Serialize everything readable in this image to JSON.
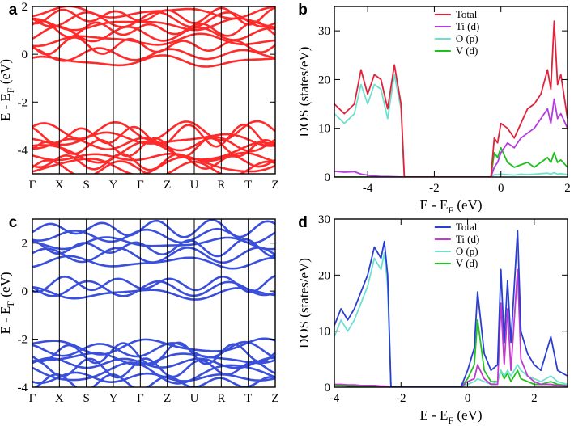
{
  "chart_data": [
    {
      "panel": "a",
      "type": "line",
      "subtype": "band-structure",
      "color": "#ff2a2a",
      "k_labels": [
        "Γ",
        "X",
        "S",
        "Y",
        "Γ",
        "Z",
        "U",
        "R",
        "T",
        "Z"
      ],
      "ylabel": "E - E",
      "ylabel_sub": "F",
      "ylabel_unit": "(eV)",
      "ylim": [
        -5,
        2
      ],
      "yticks": [
        -4,
        -2,
        0,
        2
      ],
      "conduction_bands": [
        -0.3,
        0.0,
        0.35,
        0.6,
        0.85,
        1.05,
        1.25,
        1.45,
        1.6,
        1.75
      ],
      "valence_bands": [
        -3.2,
        -3.4,
        -3.55,
        -3.75,
        -3.9,
        -4.1,
        -4.3,
        -4.5,
        -4.65,
        -4.8
      ]
    },
    {
      "panel": "b",
      "type": "line",
      "subtype": "density-of-states",
      "xlabel": "E - E",
      "xlabel_sub": "F",
      "xlabel_unit": "(eV)",
      "ylabel": "DOS (states/eV)",
      "xlim": [
        -5,
        2
      ],
      "ylim": [
        0,
        35
      ],
      "xticks": [
        -4,
        -2,
        0,
        2
      ],
      "yticks": [
        0,
        10,
        20,
        30
      ],
      "legend_position": "top-right",
      "x": [
        -5.0,
        -4.7,
        -4.4,
        -4.2,
        -4.0,
        -3.8,
        -3.6,
        -3.4,
        -3.2,
        -3.0,
        -2.9,
        -2.5,
        -2.0,
        -1.0,
        -0.3,
        -0.2,
        -0.1,
        0.0,
        0.2,
        0.4,
        0.6,
        0.8,
        1.0,
        1.2,
        1.4,
        1.5,
        1.6,
        1.7,
        1.8,
        2.0
      ],
      "series": [
        {
          "name": "Total",
          "color": "#e0233c",
          "values": [
            15,
            13,
            15,
            22,
            17,
            21,
            20,
            14,
            23,
            15,
            0,
            0,
            0,
            0,
            0,
            8,
            7,
            11,
            10,
            8,
            11,
            14,
            15,
            17,
            22,
            18,
            32,
            19,
            21,
            12
          ]
        },
        {
          "name": "Ti (d)",
          "color": "#b33be0",
          "values": [
            1.2,
            1.0,
            1.1,
            0.6,
            0.4,
            0.2,
            0.1,
            0.1,
            0.05,
            0.02,
            0,
            0,
            0,
            0,
            0,
            2,
            3,
            5,
            7,
            6,
            8,
            9,
            10,
            12,
            14,
            11,
            16,
            12,
            13,
            10
          ]
        },
        {
          "name": "O (p)",
          "color": "#6fe0cf",
          "values": [
            13,
            11,
            13,
            19,
            15,
            19,
            18,
            12,
            21,
            14,
            0,
            0,
            0,
            0,
            0,
            0.5,
            0.5,
            0.6,
            0.5,
            0.4,
            0.6,
            0.5,
            0.6,
            0.7,
            0.8,
            0.6,
            0.9,
            0.6,
            0.7,
            0.5
          ]
        },
        {
          "name": "V (d)",
          "color": "#1fbf1f",
          "values": [
            0,
            0,
            0,
            0,
            0,
            0,
            0,
            0,
            0,
            0,
            0,
            0,
            0,
            0,
            0,
            5,
            4,
            6,
            3,
            2,
            2.5,
            3,
            2,
            3,
            4,
            3,
            5,
            3,
            3.5,
            2
          ]
        }
      ]
    },
    {
      "panel": "c",
      "type": "line",
      "subtype": "band-structure",
      "color": "#3a4fdb",
      "k_labels": [
        "Γ",
        "X",
        "S",
        "Y",
        "Γ",
        "Z",
        "U",
        "R",
        "T",
        "Z"
      ],
      "ylabel": "E - E",
      "ylabel_sub": "F",
      "ylabel_unit": "(eV)",
      "ylim": [
        -4,
        3
      ],
      "yticks": [
        -4,
        -2,
        0,
        2
      ],
      "conduction_bands": [
        -0.1,
        0.1,
        0.3,
        1.2,
        1.5,
        1.8,
        2.0,
        2.3,
        2.6
      ],
      "valence_bands": [
        -2.3,
        -2.45,
        -2.6,
        -2.8,
        -3.0,
        -3.2,
        -3.4,
        -3.6,
        -3.8
      ]
    },
    {
      "panel": "d",
      "type": "line",
      "subtype": "density-of-states",
      "xlabel": "E - E",
      "xlabel_sub": "F",
      "xlabel_unit": "(eV)",
      "ylabel": "DOS (states/eV)",
      "xlim": [
        -4,
        3
      ],
      "ylim": [
        0,
        30
      ],
      "xticks": [
        -4,
        -2,
        0,
        2
      ],
      "yticks": [
        0,
        10,
        20,
        30
      ],
      "legend_position": "top-right",
      "x": [
        -4.0,
        -3.8,
        -3.6,
        -3.4,
        -3.2,
        -3.0,
        -2.8,
        -2.6,
        -2.5,
        -2.4,
        -2.3,
        -2.2,
        -1.5,
        -0.5,
        -0.2,
        0.0,
        0.2,
        0.3,
        0.5,
        0.7,
        0.9,
        1.0,
        1.1,
        1.2,
        1.3,
        1.5,
        1.6,
        1.8,
        2.0,
        2.2,
        2.5,
        2.7,
        3.0
      ],
      "series": [
        {
          "name": "Total",
          "color": "#2a3fd1",
          "values": [
            11,
            14,
            12,
            14,
            17,
            20,
            25,
            23,
            26,
            20,
            0,
            0,
            0,
            0,
            0,
            3,
            7,
            17,
            6,
            3,
            4,
            21,
            8,
            19,
            8,
            28,
            10,
            6,
            4,
            3,
            9,
            3,
            2
          ]
        },
        {
          "name": "Ti (d)",
          "color": "#c03acb",
          "values": [
            0.5,
            0.5,
            0.4,
            0.4,
            0.3,
            0.3,
            0.3,
            0.2,
            0.2,
            0.1,
            0,
            0,
            0,
            0,
            0,
            1,
            1.5,
            4,
            1.5,
            0.5,
            0.5,
            15,
            4,
            14,
            3,
            21,
            5,
            2,
            1,
            0.5,
            0.5,
            0.3,
            0.2
          ]
        },
        {
          "name": "O (p)",
          "color": "#6fe0cf",
          "values": [
            9,
            12,
            10,
            12,
            15,
            18,
            23,
            21,
            24,
            18,
            0,
            0,
            0,
            0,
            0,
            0.5,
            1,
            1.5,
            1,
            0.5,
            1,
            3,
            2,
            3,
            2,
            4,
            3,
            2,
            1.5,
            1,
            2,
            1,
            0.5
          ]
        },
        {
          "name": "V (d)",
          "color": "#22c222",
          "values": [
            0.3,
            0.3,
            0.2,
            0.2,
            0.2,
            0.2,
            0.2,
            0.1,
            0.1,
            0,
            0,
            0,
            0,
            0,
            0,
            1.5,
            4,
            12,
            3,
            1,
            1,
            3,
            1.5,
            2.5,
            1,
            3,
            1.5,
            1,
            0.5,
            0.5,
            1,
            0.5,
            0.3
          ]
        }
      ]
    }
  ]
}
